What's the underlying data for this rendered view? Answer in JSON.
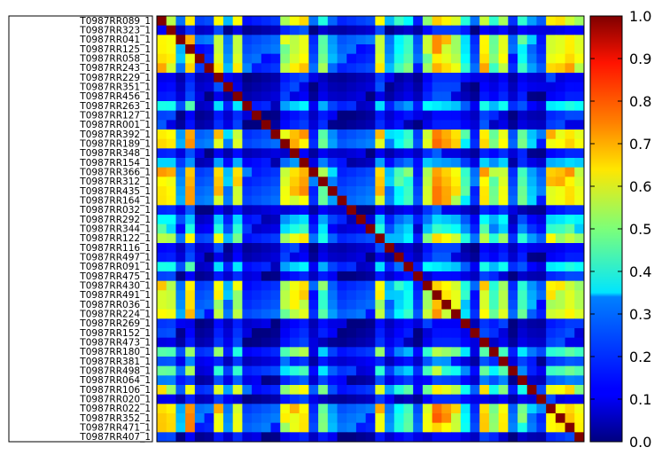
{
  "chart_data": {
    "type": "heatmap",
    "rows": [
      "T0987RR089_1",
      "T0987RR323_1",
      "T0987RR041_1",
      "T0987RR125_1",
      "T0987RR058_1",
      "T0987RR243_1",
      "T0987RR229_1",
      "T0987RR351_1",
      "T0987RR456_1",
      "T0987RR263_1",
      "T0987RR127_1",
      "T0987RR001_1",
      "T0987RR392_1",
      "T0987RR189_1",
      "T0987RR348_1",
      "T0987RR154_1",
      "T0987RR366_1",
      "T0987RR312_1",
      "T0987RR435_1",
      "T0987RR164_1",
      "T0987RR032_1",
      "T0987RR292_1",
      "T0987RR344_1",
      "T0987RR122_1",
      "T0987RR116_1",
      "T0987RR497_1",
      "T0987RR091_1",
      "T0987RR475_1",
      "T0987RR430_1",
      "T0987RR491_1",
      "T0987RR036_1",
      "T0987RR224_1",
      "T0987RR269_1",
      "T0987RR152_1",
      "T0987RR473_1",
      "T0987RR180_1",
      "T0987RR381_1",
      "T0987RR498_1",
      "T0987RR064_1",
      "T0987RR106_1",
      "T0987RR020_1",
      "T0987RR022_1",
      "T0987RR352_1",
      "T0987RR471_1",
      "T0987RR407_1"
    ],
    "ncols": 45,
    "colorbar": {
      "min": 0.0,
      "max": 1.0,
      "ticks": [
        "0.0",
        "0.1",
        "0.2",
        "0.3",
        "0.4",
        "0.5",
        "0.6",
        "0.7",
        "0.8",
        "0.9",
        "1.0"
      ],
      "colormap": "jet"
    },
    "value_profile": [
      0.55,
      0.5,
      0.1,
      0.6,
      0.05,
      0.05,
      0.5,
      0.1,
      0.45,
      0.05,
      0.05,
      0.05,
      0.05,
      0.4,
      0.5,
      0.55,
      0.05,
      0.3,
      0.1,
      0.05,
      0.05,
      0.05,
      0.05,
      0.5,
      0.1,
      0.2,
      0.25,
      0.05,
      0.4,
      0.65,
      0.55,
      0.45,
      0.2,
      0.05,
      0.55,
      0.3,
      0.45,
      0.05,
      0.25,
      0.1,
      0.05,
      0.5,
      0.5,
      0.55,
      0.45
    ],
    "row_profile": [
      0.8,
      0.05,
      0.85,
      0.8,
      0.8,
      0.9,
      0.05,
      0.05,
      0.05,
      0.3,
      0.05,
      0.05,
      0.95,
      0.95,
      0.05,
      0.2,
      0.95,
      0.95,
      0.95,
      0.9,
      0.05,
      0.25,
      0.35,
      0.75,
      0.05,
      0.05,
      0.3,
      0.05,
      0.8,
      0.8,
      0.75,
      0.8,
      0.05,
      0.05,
      0.05,
      0.5,
      0.1,
      0.45,
      0.1,
      0.75,
      0.05,
      0.95,
      0.95,
      0.9,
      0.05
    ]
  },
  "colors": {
    "frame": "#000000",
    "background": "#ffffff"
  }
}
